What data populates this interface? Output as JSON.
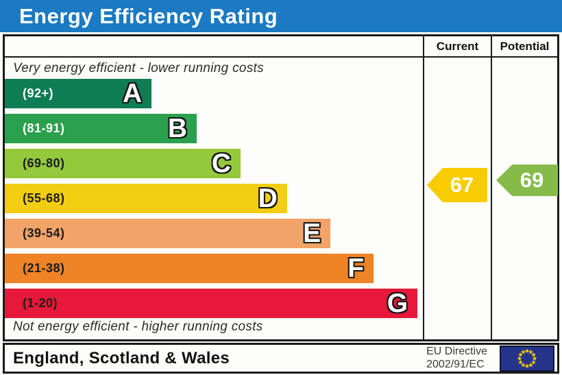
{
  "window_title": "Energy Efficiency Rating",
  "header": {
    "current_label": "Current",
    "potential_label": "Potential"
  },
  "footer": {
    "region_label": "England, Scotland & Wales",
    "directive_line1": "EU Directive",
    "directive_line2": "2002/91/EC",
    "flag_icon": "eu-flag-icon"
  },
  "colors": {
    "title_bar": "#1b7ac1",
    "border": "#1a1a1a",
    "current_arrow": "#f8cc00",
    "potential_arrow": "#86bb49",
    "flag_blue": "#25348b",
    "flag_star": "#ffcc00"
  },
  "chart_data": {
    "type": "bar",
    "title": "Energy Efficiency Rating",
    "top_note": "Very energy efficient - lower running costs",
    "bottom_note": "Not energy efficient - higher running costs",
    "bands": [
      {
        "letter": "A",
        "range_label": "(92+)",
        "min": 92,
        "max": 100,
        "color": "#0e7d53",
        "label_color": "#ffffff",
        "width_pct": 35.1
      },
      {
        "letter": "B",
        "range_label": "(81-91)",
        "min": 81,
        "max": 91,
        "color": "#2ba04e",
        "label_color": "#ffffff",
        "width_pct": 45.9
      },
      {
        "letter": "C",
        "range_label": "(69-80)",
        "min": 69,
        "max": 80,
        "color": "#95c93c",
        "label_color": "#1c1c1c",
        "width_pct": 56.4
      },
      {
        "letter": "D",
        "range_label": "(55-68)",
        "min": 55,
        "max": 68,
        "color": "#f3cd12",
        "label_color": "#1c1c1c",
        "width_pct": 67.5
      },
      {
        "letter": "E",
        "range_label": "(39-54)",
        "min": 39,
        "max": 54,
        "color": "#f2a369",
        "label_color": "#1c1c1c",
        "width_pct": 77.9
      },
      {
        "letter": "F",
        "range_label": "(21-38)",
        "min": 21,
        "max": 38,
        "color": "#ee8327",
        "label_color": "#1c1c1c",
        "width_pct": 88.2
      },
      {
        "letter": "G",
        "range_label": "(1-20)",
        "min": 1,
        "max": 20,
        "color": "#e7183a",
        "label_color": "#1c1c1c",
        "width_pct": 98.7
      }
    ],
    "current": {
      "value": 67,
      "band": "D"
    },
    "potential": {
      "value": 69,
      "band": "C"
    },
    "grid": false,
    "legend_position": "none"
  }
}
